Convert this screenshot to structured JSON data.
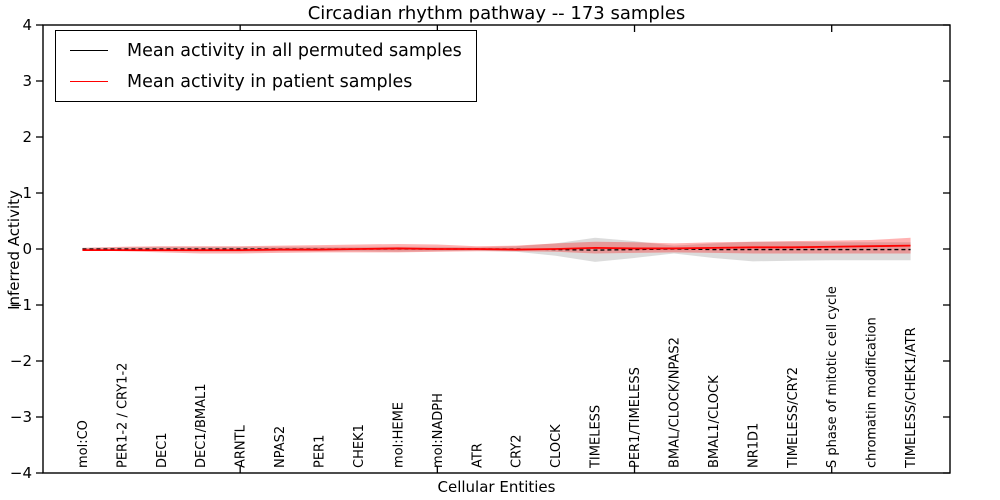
{
  "figure": {
    "title": "Circadian rhythm pathway -- 173 samples",
    "xlabel": "Cellular Entities",
    "ylabel": "Inferred Activity"
  },
  "legend": {
    "items": [
      {
        "label": "Mean activity in all permuted samples",
        "color": "#000000"
      },
      {
        "label": "Mean activity in patient samples",
        "color": "#ff0000"
      }
    ]
  },
  "chart_data": {
    "type": "line",
    "title": "Circadian rhythm pathway -- 173 samples",
    "xlabel": "Cellular Entities",
    "ylabel": "Inferred Activity",
    "grid": false,
    "legend_position": "upper left",
    "ylim": [
      -4,
      4
    ],
    "yticks": [
      -4,
      -3,
      -2,
      -1,
      0,
      1,
      2,
      3,
      4
    ],
    "ytick_labels": [
      "−4",
      "−3",
      "−2",
      "−1",
      "0",
      "1",
      "2",
      "3",
      "4"
    ],
    "xlim": [
      0,
      23
    ],
    "x": [
      1,
      2,
      3,
      4,
      5,
      6,
      7,
      8,
      9,
      10,
      11,
      12,
      13,
      14,
      15,
      16,
      17,
      18,
      19,
      20,
      21,
      22
    ],
    "xticks_major": [
      5,
      10,
      15,
      20
    ],
    "categories": [
      "mol:CO",
      "PER1-2 / CRY1-2",
      "DEC1",
      "DEC1/BMAL1",
      "ARNTL",
      "NPAS2",
      "PER1",
      "CHEK1",
      "mol:HEME",
      "mol:NADPH",
      "ATR",
      "CRY2",
      "CLOCK",
      "TIMELESS",
      "PER1/TIMELESS",
      "BMAL/CLOCK/NPAS2",
      "BMAL1/CLOCK",
      "NR1D1",
      "TIMELESS/CRY2",
      "S phase of mitotic cell cycle",
      "chromatin modification",
      "TIMELESS/CHEK1/ATR"
    ],
    "series": [
      {
        "name": "Mean activity in all permuted samples",
        "color": "#000000",
        "style": "dashed",
        "width": 1.3,
        "values": [
          0,
          0,
          0,
          0,
          0,
          0,
          0,
          0,
          0,
          0,
          0,
          0,
          -0.01,
          -0.02,
          -0.01,
          0,
          -0.01,
          -0.01,
          -0.01,
          -0.01,
          -0.01,
          -0.01
        ]
      },
      {
        "name": "Mean activity in patient samples",
        "color": "#ff0000",
        "style": "solid",
        "width": 1.8,
        "values": [
          -0.02,
          -0.02,
          -0.02,
          -0.02,
          -0.02,
          -0.01,
          -0.01,
          0,
          0.01,
          0,
          0,
          -0.01,
          0,
          0.02,
          0.01,
          0.01,
          0.02,
          0.03,
          0.03,
          0.04,
          0.05,
          0.06
        ]
      }
    ],
    "bands": [
      {
        "name": "permuted-range",
        "color": "rgba(130,130,130,0.28)",
        "hi": [
          0.02,
          0.03,
          0.04,
          0.04,
          0.04,
          0.04,
          0.04,
          0.04,
          0.04,
          0.04,
          0.03,
          0.05,
          0.1,
          0.2,
          0.14,
          0.06,
          0.1,
          0.13,
          0.13,
          0.12,
          0.12,
          0.12
        ],
        "lo": [
          -0.02,
          -0.03,
          -0.04,
          -0.05,
          -0.05,
          -0.04,
          -0.04,
          -0.04,
          -0.05,
          -0.04,
          -0.03,
          -0.05,
          -0.12,
          -0.23,
          -0.16,
          -0.08,
          -0.16,
          -0.22,
          -0.21,
          -0.2,
          -0.2,
          -0.2
        ]
      },
      {
        "name": "patient-range",
        "color": "rgba(255,0,0,0.30)",
        "hi": [
          0.02,
          0.04,
          0.05,
          0.05,
          0.05,
          0.06,
          0.07,
          0.08,
          0.09,
          0.08,
          0.05,
          0.06,
          0.1,
          0.13,
          0.12,
          0.1,
          0.12,
          0.13,
          0.14,
          0.15,
          0.16,
          0.2
        ],
        "lo": [
          -0.02,
          -0.04,
          -0.06,
          -0.08,
          -0.08,
          -0.07,
          -0.06,
          -0.06,
          -0.06,
          -0.05,
          -0.04,
          -0.04,
          -0.05,
          -0.08,
          -0.07,
          -0.06,
          -0.07,
          -0.08,
          -0.08,
          -0.08,
          -0.08,
          -0.08
        ]
      }
    ]
  }
}
